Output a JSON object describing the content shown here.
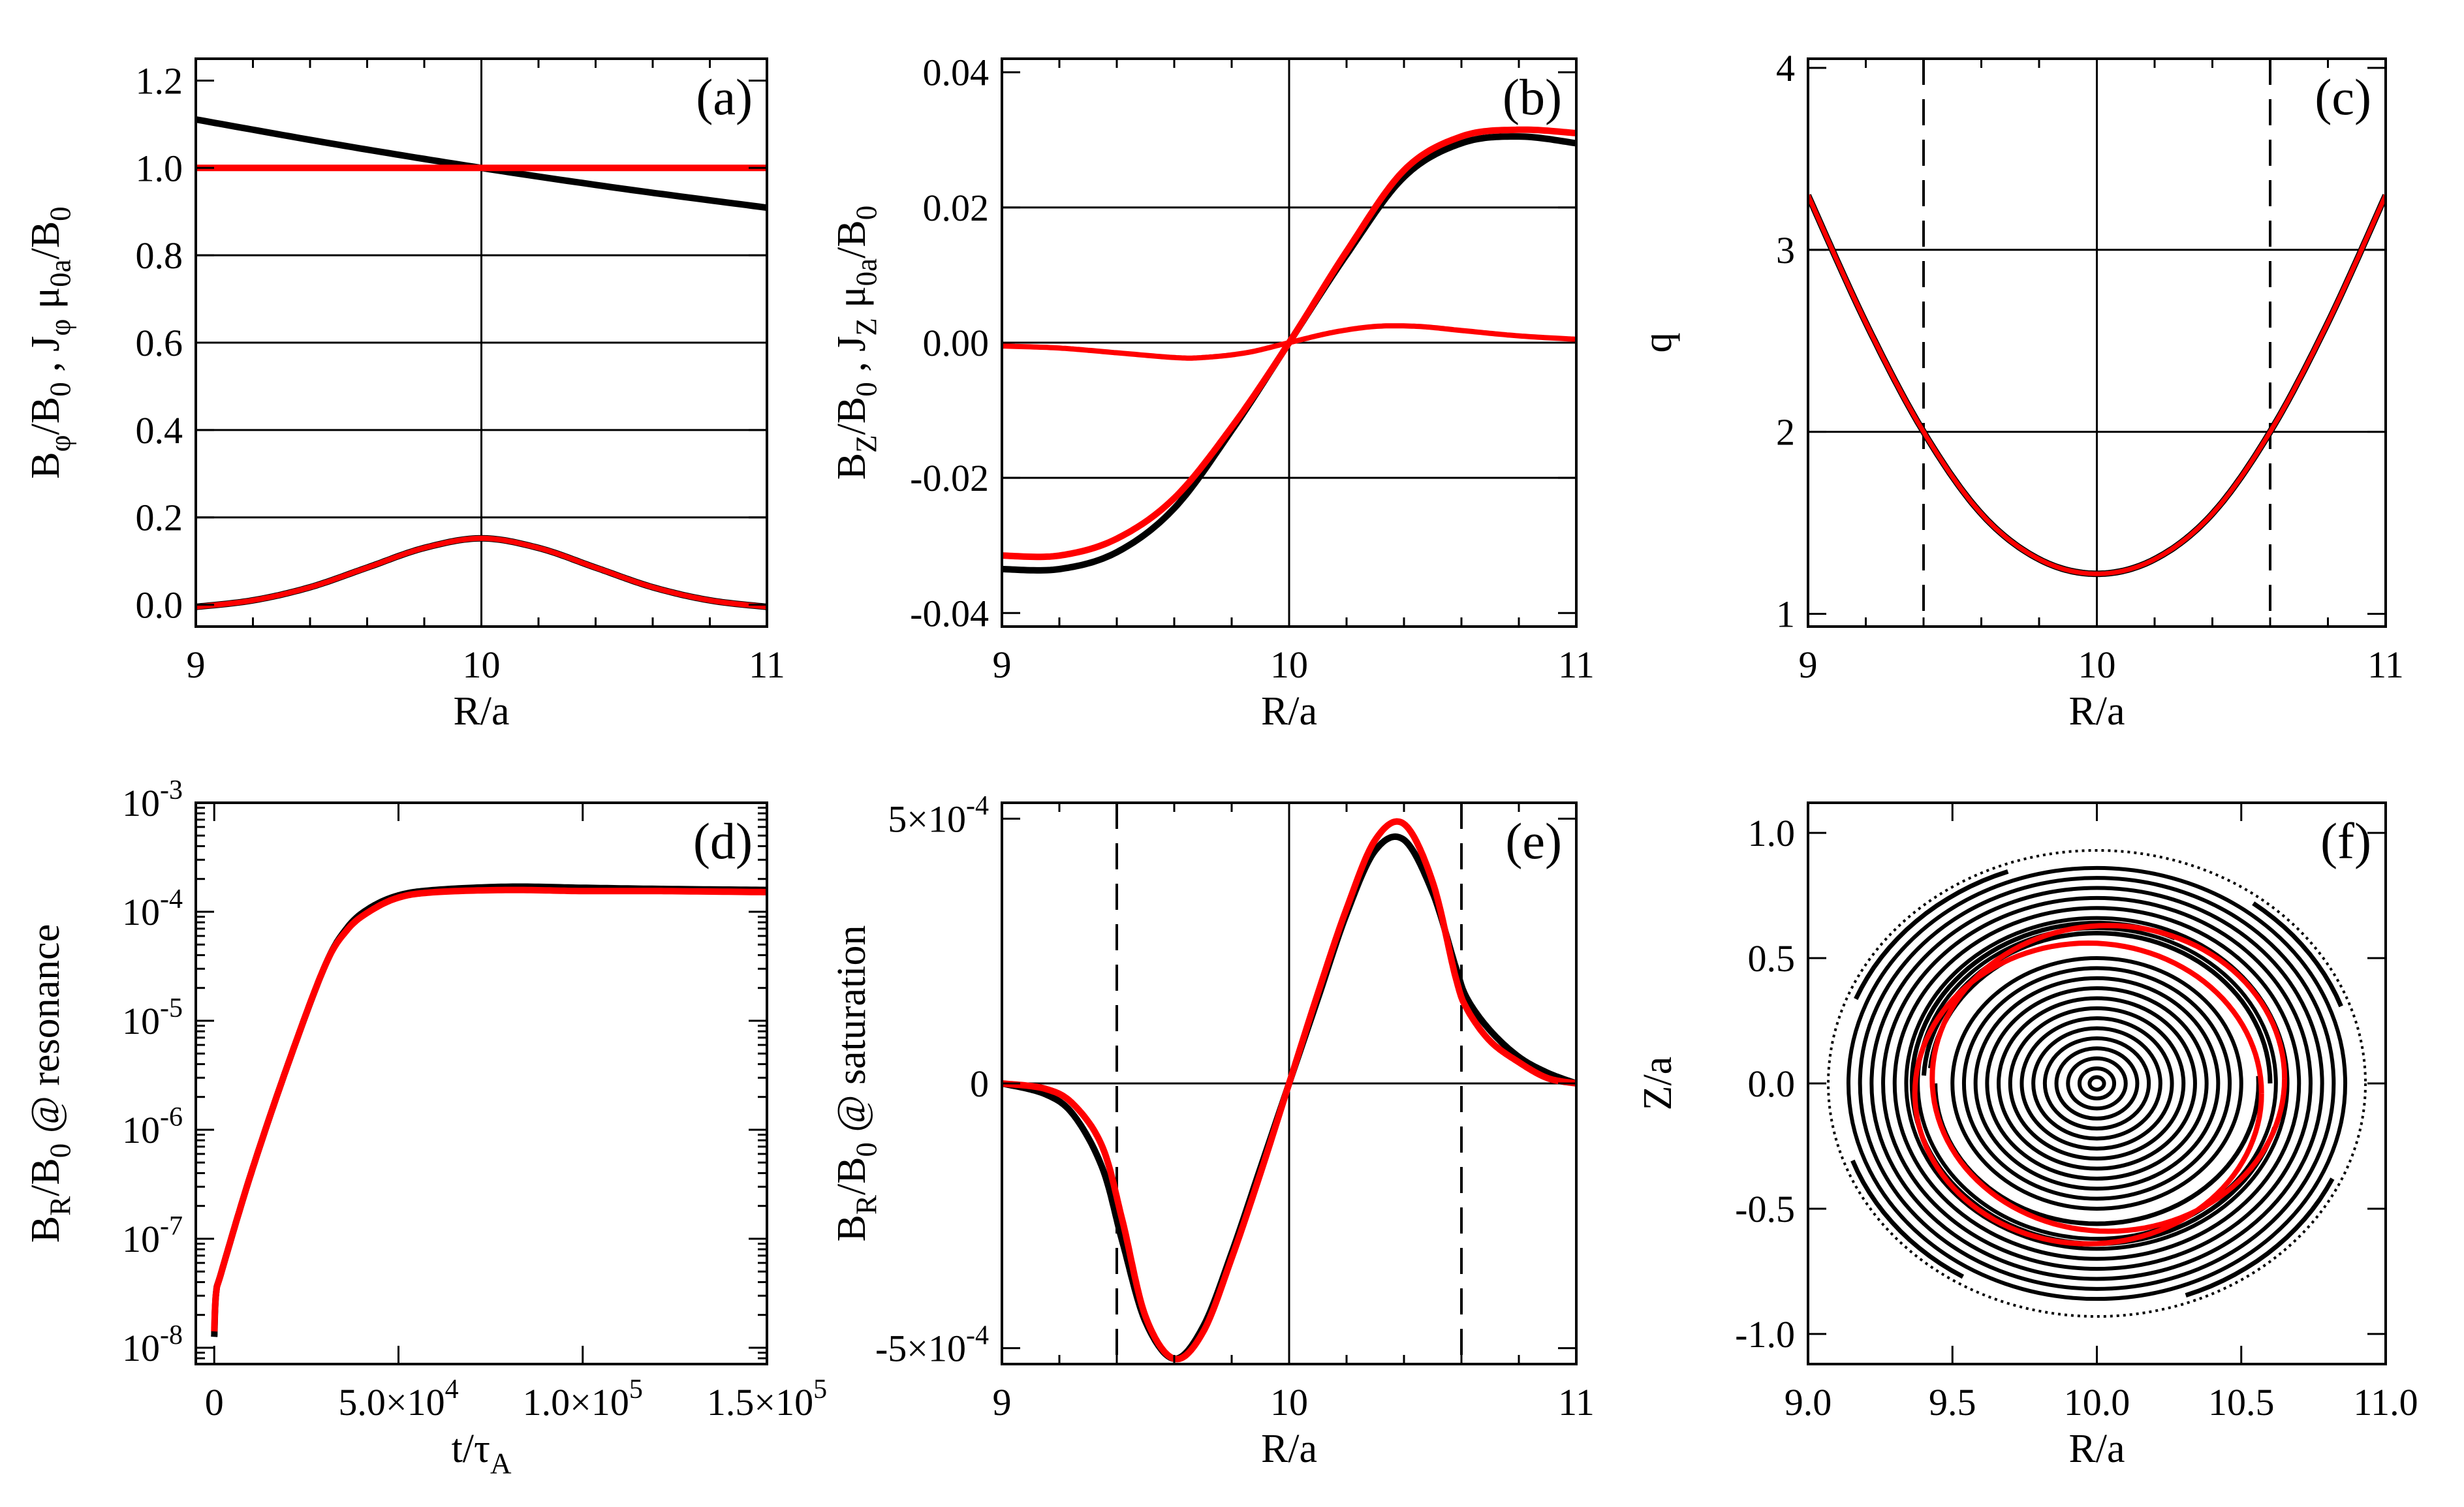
{
  "figure": {
    "colors": {
      "black": "#000000",
      "red": "#ff0000"
    }
  },
  "chart_data": [
    {
      "id": "a",
      "type": "line",
      "panel_label": "(a)",
      "xlabel": "R/a",
      "ylabel": "B_φ/B_0 , J_φ μ_0a/B_0",
      "xlim": [
        9,
        11
      ],
      "ylim": [
        -0.05,
        1.25
      ],
      "xticks": [
        {
          "v": 9,
          "t": "9"
        },
        {
          "v": 10,
          "t": "10"
        },
        {
          "v": 11,
          "t": "11"
        }
      ],
      "yticks": [
        {
          "v": 0,
          "t": "0.0"
        },
        {
          "v": 0.2,
          "t": "0.2"
        },
        {
          "v": 0.4,
          "t": "0.4"
        },
        {
          "v": 0.6,
          "t": "0.6"
        },
        {
          "v": 0.8,
          "t": "0.8"
        },
        {
          "v": 1.0,
          "t": "1.0"
        },
        {
          "v": 1.2,
          "t": "1.2"
        }
      ],
      "hgrid": [
        0.2,
        0.4,
        0.6,
        0.8,
        1.0
      ],
      "vgrid": [
        10
      ],
      "series": [
        {
          "name": "B_phi (black)",
          "color": "black",
          "width": 10,
          "x": [
            9,
            9.5,
            10,
            10.5,
            11
          ],
          "y": [
            1.111,
            1.053,
            1.0,
            0.952,
            0.909
          ]
        },
        {
          "name": "B_phi (red)",
          "color": "red",
          "width": 10,
          "x": [
            9,
            11
          ],
          "y": [
            1.0,
            1.0
          ]
        },
        {
          "name": "J_phi (black)",
          "color": "black",
          "width": 10,
          "x": [
            9,
            9.2,
            9.4,
            9.6,
            9.8,
            10,
            10.2,
            10.4,
            10.6,
            10.8,
            11
          ],
          "y": [
            -0.005,
            0.01,
            0.04,
            0.085,
            0.13,
            0.152,
            0.13,
            0.085,
            0.04,
            0.01,
            -0.005
          ]
        },
        {
          "name": "J_phi (red)",
          "color": "red",
          "width": 8,
          "x": [
            9,
            9.2,
            9.4,
            9.6,
            9.8,
            10,
            10.2,
            10.4,
            10.6,
            10.8,
            11
          ],
          "y": [
            -0.005,
            0.01,
            0.04,
            0.085,
            0.13,
            0.152,
            0.13,
            0.085,
            0.04,
            0.01,
            -0.005
          ]
        }
      ]
    },
    {
      "id": "b",
      "type": "line",
      "panel_label": "(b)",
      "xlabel": "R/a",
      "ylabel": "B_Z/B_0 , J_Z μ_0a/B_0",
      "xlim": [
        9,
        11
      ],
      "ylim": [
        -0.042,
        0.042
      ],
      "xticks": [
        {
          "v": 9,
          "t": "9"
        },
        {
          "v": 10,
          "t": "10"
        },
        {
          "v": 11,
          "t": "11"
        }
      ],
      "yticks": [
        {
          "v": -0.04,
          "t": "-0.04"
        },
        {
          "v": -0.02,
          "t": "-0.02"
        },
        {
          "v": 0,
          "t": "0.00"
        },
        {
          "v": 0.02,
          "t": "0.02"
        },
        {
          "v": 0.04,
          "t": "0.04"
        }
      ],
      "hgrid": [
        -0.02,
        0,
        0.02
      ],
      "vgrid": [
        10
      ],
      "series": [
        {
          "name": "B_Z (black)",
          "color": "black",
          "width": 10,
          "x": [
            9,
            9.2,
            9.4,
            9.6,
            9.8,
            10,
            10.2,
            10.4,
            10.6,
            10.8,
            11
          ],
          "y": [
            -0.0335,
            -0.0335,
            -0.031,
            -0.0245,
            -0.013,
            0.0,
            0.013,
            0.0245,
            0.0295,
            0.0305,
            0.0295
          ]
        },
        {
          "name": "B_Z (red)",
          "color": "red",
          "width": 10,
          "x": [
            9,
            9.2,
            9.4,
            9.6,
            9.8,
            10,
            10.2,
            10.4,
            10.6,
            10.8,
            11
          ],
          "y": [
            -0.0315,
            -0.0315,
            -0.029,
            -0.023,
            -0.0125,
            0.0,
            0.0135,
            0.0255,
            0.0305,
            0.0315,
            0.031
          ]
        },
        {
          "name": "J_Z (red)",
          "color": "red",
          "width": 8,
          "x": [
            9,
            9.2,
            9.4,
            9.6,
            9.7,
            9.85,
            10,
            10.15,
            10.3,
            10.45,
            10.6,
            10.8,
            11
          ],
          "y": [
            -0.0005,
            -0.0008,
            -0.0015,
            -0.0022,
            -0.0022,
            -0.0015,
            0.0,
            0.0015,
            0.0024,
            0.0024,
            0.0018,
            0.001,
            0.0005
          ]
        }
      ]
    },
    {
      "id": "c",
      "type": "line",
      "panel_label": "(c)",
      "xlabel": "R/a",
      "ylabel": "q",
      "xlim": [
        9,
        11
      ],
      "ylim": [
        0.93,
        4.05
      ],
      "xticks": [
        {
          "v": 9,
          "t": "9"
        },
        {
          "v": 10,
          "t": "10"
        },
        {
          "v": 11,
          "t": "11"
        }
      ],
      "yticks": [
        {
          "v": 1,
          "t": "1"
        },
        {
          "v": 2,
          "t": "2"
        },
        {
          "v": 3,
          "t": "3"
        },
        {
          "v": 4,
          "t": "4"
        }
      ],
      "hgrid": [
        2,
        3
      ],
      "vgrid": [
        10
      ],
      "vdash": [
        9.4,
        10.6
      ],
      "series": [
        {
          "name": "q (black)",
          "color": "black",
          "width": 10,
          "x": [
            9,
            9.2,
            9.4,
            9.6,
            9.8,
            10,
            10.2,
            10.4,
            10.6,
            10.8,
            11
          ],
          "y": [
            3.3,
            2.6,
            2.0,
            1.55,
            1.3,
            1.22,
            1.3,
            1.55,
            2.0,
            2.6,
            3.3
          ]
        },
        {
          "name": "q (red)",
          "color": "red",
          "width": 7,
          "x": [
            9,
            9.2,
            9.4,
            9.6,
            9.8,
            10,
            10.2,
            10.4,
            10.6,
            10.8,
            11
          ],
          "y": [
            3.3,
            2.6,
            2.0,
            1.55,
            1.3,
            1.22,
            1.3,
            1.55,
            2.0,
            2.6,
            3.3
          ]
        }
      ]
    },
    {
      "id": "d",
      "type": "line",
      "panel_label": "(d)",
      "yscale": "log",
      "xlabel": "t/τ_A",
      "ylabel": "B_R/B_0 @ resonance",
      "xlim": [
        -5000,
        150000
      ],
      "ylim": [
        -8.15,
        -3.0
      ],
      "xticks": [
        {
          "v": 0,
          "t": "0"
        },
        {
          "v": 50000,
          "t": "5.0×10^4"
        },
        {
          "v": 100000,
          "t": "1.0×10^5"
        },
        {
          "v": 150000,
          "t": "1.5×10^5"
        }
      ],
      "yticks": [
        {
          "v": -8,
          "t": "10^-8"
        },
        {
          "v": -7,
          "t": "10^-7"
        },
        {
          "v": -6,
          "t": "10^-6"
        },
        {
          "v": -5,
          "t": "10^-5"
        },
        {
          "v": -4,
          "t": "10^-4"
        },
        {
          "v": -3,
          "t": "10^-3"
        }
      ],
      "hgrid": [],
      "vgrid": [],
      "series": [
        {
          "name": "growth (black)",
          "color": "black",
          "width": 10,
          "x": [
            0,
            500,
            2000,
            10000,
            20000,
            30000,
            36000,
            42000,
            50000,
            60000,
            80000,
            100000,
            120000,
            150000
          ],
          "y": [
            -7.9,
            -7.5,
            -7.3,
            -6.4,
            -5.4,
            -4.5,
            -4.15,
            -3.97,
            -3.85,
            -3.8,
            -3.77,
            -3.78,
            -3.79,
            -3.8
          ]
        },
        {
          "name": "growth (red)",
          "color": "red",
          "width": 10,
          "x": [
            0,
            500,
            2000,
            10000,
            20000,
            30000,
            36000,
            42000,
            50000,
            60000,
            80000,
            100000,
            120000,
            150000
          ],
          "y": [
            -7.85,
            -7.5,
            -7.3,
            -6.4,
            -5.4,
            -4.5,
            -4.17,
            -4.0,
            -3.87,
            -3.82,
            -3.8,
            -3.81,
            -3.81,
            -3.82
          ]
        }
      ]
    },
    {
      "id": "e",
      "type": "line",
      "panel_label": "(e)",
      "xlabel": "R/a",
      "ylabel": "B_R/B_0 @ saturation",
      "xlim": [
        9,
        11
      ],
      "ylim": [
        -0.00053,
        0.00053
      ],
      "xticks": [
        {
          "v": 9,
          "t": "9"
        },
        {
          "v": 10,
          "t": "10"
        },
        {
          "v": 11,
          "t": "11"
        }
      ],
      "yticks": [
        {
          "v": -0.0005,
          "t": "-5×10^-4"
        },
        {
          "v": 0,
          "t": "0"
        },
        {
          "v": 0.0005,
          "t": "5×10^-4"
        }
      ],
      "hgrid": [
        0
      ],
      "vgrid": [
        10
      ],
      "vdash": [
        9.4,
        10.6
      ],
      "series": [
        {
          "name": "saturation (black)",
          "color": "black",
          "width": 10,
          "x": [
            9,
            9.15,
            9.25,
            9.35,
            9.42,
            9.5,
            9.6,
            9.7,
            9.8,
            9.9,
            10,
            10.1,
            10.2,
            10.3,
            10.4,
            10.5,
            10.58,
            10.62,
            10.7,
            10.8,
            10.9,
            11
          ],
          "y": [
            0,
            -2e-05,
            -6e-05,
            -0.00016,
            -0.0003,
            -0.00045,
            -0.00052,
            -0.00046,
            -0.00032,
            -0.00016,
            0,
            0.00016,
            0.00032,
            0.00044,
            0.00046,
            0.00036,
            0.00022,
            0.00016,
            0.0001,
            5e-05,
            2e-05,
            0
          ]
        },
        {
          "name": "saturation (red)",
          "color": "red",
          "width": 10,
          "x": [
            9,
            9.15,
            9.25,
            9.35,
            9.42,
            9.5,
            9.6,
            9.7,
            9.8,
            9.9,
            10,
            10.1,
            10.2,
            10.3,
            10.4,
            10.5,
            10.58,
            10.62,
            10.7,
            10.8,
            10.9,
            11
          ],
          "y": [
            0,
            -1e-05,
            -4e-05,
            -0.00012,
            -0.00026,
            -0.00044,
            -0.00052,
            -0.00047,
            -0.00033,
            -0.00017,
            0,
            0.00017,
            0.00033,
            0.00046,
            0.00049,
            0.00038,
            0.0002,
            0.00014,
            8e-05,
            4e-05,
            1e-05,
            0
          ]
        }
      ]
    },
    {
      "id": "f",
      "type": "scatter",
      "panel_label": "(f)",
      "equal_aspect": true,
      "xlabel": "R/a",
      "ylabel": "Z/a",
      "xlim": [
        9.0,
        11.0
      ],
      "ylim": [
        -1.12,
        1.12
      ],
      "xticks": [
        {
          "v": 9.0,
          "t": "9.0"
        },
        {
          "v": 9.5,
          "t": "9.5"
        },
        {
          "v": 10.0,
          "t": "10.0"
        },
        {
          "v": 10.5,
          "t": "10.5"
        },
        {
          "v": 11.0,
          "t": "11.0"
        }
      ],
      "yticks": [
        {
          "v": -1.0,
          "t": "-1.0"
        },
        {
          "v": -0.5,
          "t": "-0.5"
        },
        {
          "v": 0.0,
          "t": "0.0"
        },
        {
          "v": 0.5,
          "t": "0.5"
        },
        {
          "v": 1.0,
          "t": "1.0"
        }
      ],
      "hgrid": [],
      "vgrid": [],
      "center": [
        10.0,
        0.0
      ],
      "boundary_radius": 0.93,
      "flux_radii": [
        0.025,
        0.06,
        0.1,
        0.14,
        0.18,
        0.22,
        0.26,
        0.3,
        0.34,
        0.38,
        0.42,
        0.46,
        0.5,
        0.62,
        0.66,
        0.7,
        0.74,
        0.78,
        0.82,
        0.86
      ],
      "island_arcs_black": [
        {
          "r": 0.56,
          "start": 180,
          "end": 365
        },
        {
          "r": 0.6,
          "start": 0,
          "end": 178
        },
        {
          "r": 0.64,
          "start": 65,
          "end": 345
        },
        {
          "r": 0.58,
          "start": 120,
          "end": 175
        },
        {
          "r": 0.9,
          "start": 110,
          "end": 160
        },
        {
          "r": 0.9,
          "start": 290,
          "end": 335
        },
        {
          "r": 0.9,
          "start": 20,
          "end": 55
        },
        {
          "r": 0.9,
          "start": 200,
          "end": 240
        }
      ],
      "separatrix_red": [
        {
          "r": 0.61,
          "start": 0,
          "end": 360,
          "dx": 0.04,
          "dy": 0.02
        },
        {
          "r": 0.6,
          "start": 0,
          "end": 360,
          "dx": -0.03,
          "dy": -0.04
        }
      ]
    }
  ]
}
